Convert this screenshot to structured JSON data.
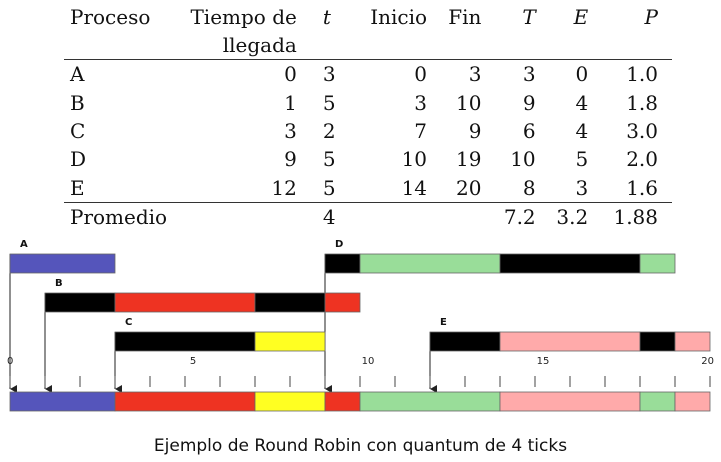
{
  "table": {
    "headers": {
      "process": "Proceso",
      "arrival": "Tiempo de llegada",
      "t": "t",
      "start": "Inicio",
      "end": "Fin",
      "T": "T",
      "E": "E",
      "P": "P"
    },
    "rows": [
      {
        "process": "A",
        "arrival": "0",
        "t": "3",
        "start": "0",
        "end": "3",
        "T": "3",
        "E": "0",
        "P": "1.0"
      },
      {
        "process": "B",
        "arrival": "1",
        "t": "5",
        "start": "3",
        "end": "10",
        "T": "9",
        "E": "4",
        "P": "1.8"
      },
      {
        "process": "C",
        "arrival": "3",
        "t": "2",
        "start": "7",
        "end": "9",
        "T": "6",
        "E": "4",
        "P": "3.0"
      },
      {
        "process": "D",
        "arrival": "9",
        "t": "5",
        "start": "10",
        "end": "19",
        "T": "10",
        "E": "5",
        "P": "2.0"
      },
      {
        "process": "E",
        "arrival": "12",
        "t": "5",
        "start": "14",
        "end": "20",
        "T": "8",
        "E": "3",
        "P": "1.6"
      }
    ],
    "average": {
      "label": "Promedio",
      "t": "4",
      "T": "7.2",
      "E": "3.2",
      "P": "1.88"
    }
  },
  "gantt": {
    "tick_labels": [
      "0",
      "5",
      "10",
      "15",
      "20"
    ],
    "timeline_max": 20,
    "colors": {
      "A": "#5555bb",
      "B": "#ee3322",
      "C": "#ffff22",
      "D": "#99dd99",
      "E": "#ffaaaa",
      "wait": "#000000"
    },
    "processes": [
      {
        "name": "A",
        "arrival": 0,
        "segments": [
          {
            "from": 0,
            "to": 3,
            "state": "run"
          }
        ]
      },
      {
        "name": "B",
        "arrival": 1,
        "segments": [
          {
            "from": 1,
            "to": 3,
            "state": "wait"
          },
          {
            "from": 3,
            "to": 7,
            "state": "run"
          },
          {
            "from": 7,
            "to": 9,
            "state": "wait"
          },
          {
            "from": 9,
            "to": 10,
            "state": "run"
          }
        ]
      },
      {
        "name": "C",
        "arrival": 3,
        "segments": [
          {
            "from": 3,
            "to": 7,
            "state": "wait"
          },
          {
            "from": 7,
            "to": 9,
            "state": "run"
          }
        ]
      },
      {
        "name": "D",
        "arrival": 9,
        "segments": [
          {
            "from": 9,
            "to": 10,
            "state": "wait"
          },
          {
            "from": 10,
            "to": 14,
            "state": "run"
          },
          {
            "from": 14,
            "to": 18,
            "state": "wait"
          },
          {
            "from": 18,
            "to": 19,
            "state": "run"
          }
        ]
      },
      {
        "name": "E",
        "arrival": 12,
        "segments": [
          {
            "from": 12,
            "to": 14,
            "state": "wait"
          },
          {
            "from": 14,
            "to": 18,
            "state": "run"
          },
          {
            "from": 18,
            "to": 19,
            "state": "wait"
          },
          {
            "from": 19,
            "to": 20,
            "state": "run"
          }
        ]
      }
    ],
    "timeline": [
      {
        "from": 0,
        "to": 3,
        "process": "A"
      },
      {
        "from": 3,
        "to": 7,
        "process": "B"
      },
      {
        "from": 7,
        "to": 9,
        "process": "C"
      },
      {
        "from": 9,
        "to": 10,
        "process": "B"
      },
      {
        "from": 10,
        "to": 14,
        "process": "D"
      },
      {
        "from": 14,
        "to": 18,
        "process": "E"
      },
      {
        "from": 18,
        "to": 19,
        "process": "D"
      },
      {
        "from": 19,
        "to": 20,
        "process": "E"
      }
    ]
  },
  "caption": "Ejemplo de Round Robin con quantum de 4 ticks"
}
